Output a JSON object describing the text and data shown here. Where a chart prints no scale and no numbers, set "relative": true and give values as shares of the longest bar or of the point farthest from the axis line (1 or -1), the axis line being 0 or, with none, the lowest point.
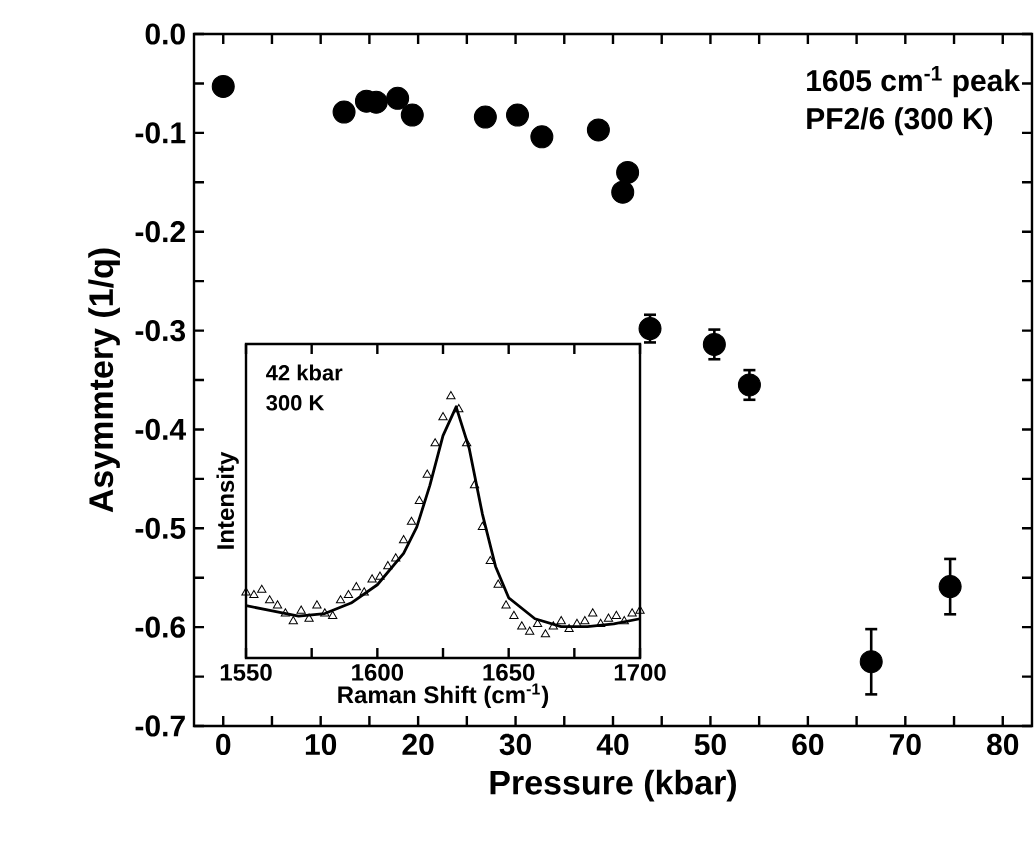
{
  "chart_data": [
    {
      "type": "scatter",
      "xlabel": "Pressure (kbar)",
      "ylabel": "Asymmtery (1/q)",
      "annotations": [
        "1605 cm$^{-1}$ peak",
        "PF2/6 (300 K)"
      ],
      "color": "#000000",
      "marker": "circle",
      "x": [
        0.0,
        12.4,
        14.7,
        15.7,
        17.9,
        19.4,
        26.9,
        30.2,
        32.7,
        38.5,
        41.5,
        41.0,
        43.8,
        50.4,
        54.0,
        66.5,
        74.6
      ],
      "values": [
        -0.053,
        -0.079,
        -0.068,
        -0.069,
        -0.065,
        -0.082,
        -0.084,
        -0.082,
        -0.104,
        -0.097,
        -0.14,
        -0.16,
        -0.298,
        -0.314,
        -0.355,
        -0.635,
        -0.559
      ],
      "errors": [
        null,
        null,
        null,
        null,
        null,
        null,
        null,
        null,
        null,
        null,
        null,
        null,
        0.014,
        0.015,
        0.015,
        0.033,
        0.028
      ],
      "xlim": [
        -3,
        83
      ],
      "ylim": [
        -0.7,
        0.0
      ],
      "xticks": [
        0,
        {
          "value": 5,
          "label": null
        },
        10,
        {
          "value": 15,
          "label": null
        },
        20,
        {
          "value": 25,
          "label": null
        },
        30,
        {
          "value": 35,
          "label": null
        },
        40,
        {
          "value": 45,
          "label": null
        },
        50,
        {
          "value": 55,
          "label": null
        },
        60,
        {
          "value": 65,
          "label": null
        },
        70,
        {
          "value": 75,
          "label": null
        },
        80
      ],
      "yticks": [
        {
          "value": 0.0,
          "label": "0.0"
        },
        {
          "value": -0.05,
          "label": null
        },
        -0.1,
        {
          "value": -0.15,
          "label": null
        },
        -0.2,
        {
          "value": -0.25,
          "label": null
        },
        -0.3,
        {
          "value": -0.35,
          "label": null
        },
        -0.4,
        {
          "value": -0.45,
          "label": null
        },
        -0.5,
        {
          "value": -0.55,
          "label": null
        },
        -0.6,
        {
          "value": -0.65,
          "label": null
        },
        -0.7
      ]
    },
    {
      "type": "scatter",
      "relative": true,
      "xlabel": "Raman Shift (cm$^{-1}$)",
      "ylabel": "Intensity",
      "annotations": [
        "42 kbar",
        "300 K"
      ],
      "tick_labels": "x",
      "xlim": [
        1550,
        1700
      ],
      "xticks": [
        1550,
        {
          "value": 1575,
          "label": null
        },
        1600,
        {
          "value": 1625,
          "label": null
        },
        1650,
        {
          "value": 1675,
          "label": null
        },
        1700
      ],
      "series": [
        {
          "type": "scatter",
          "marker": "triangle",
          "color": "#000000",
          "x": [
            1550,
            1553,
            1556,
            1559,
            1562,
            1565,
            1568,
            1571,
            1574,
            1577,
            1580,
            1583,
            1586,
            1589,
            1592,
            1595,
            1598,
            1601,
            1604,
            1607,
            1610,
            1613,
            1616,
            1619,
            1622,
            1625,
            1628,
            1631,
            1634,
            1637,
            1640,
            1643,
            1646,
            1649,
            1652,
            1655,
            1658,
            1661,
            1664,
            1667,
            1670,
            1673,
            1676,
            1679,
            1682,
            1685,
            1688,
            1691,
            1694,
            1697,
            1700
          ],
          "values": [
            0.25,
            0.24,
            0.26,
            0.22,
            0.2,
            0.17,
            0.14,
            0.18,
            0.15,
            0.2,
            0.17,
            0.16,
            0.22,
            0.24,
            0.27,
            0.25,
            0.3,
            0.31,
            0.35,
            0.38,
            0.45,
            0.52,
            0.6,
            0.7,
            0.82,
            0.92,
            1.0,
            0.95,
            0.82,
            0.66,
            0.5,
            0.37,
            0.28,
            0.2,
            0.16,
            0.12,
            0.1,
            0.13,
            0.09,
            0.12,
            0.14,
            0.11,
            0.13,
            0.14,
            0.17,
            0.13,
            0.15,
            0.16,
            0.14,
            0.17,
            0.18
          ]
        },
        {
          "type": "line",
          "marker": "none",
          "line_style": "solid",
          "color": "#000000",
          "x": [
            1550,
            1560,
            1570,
            1580,
            1590,
            1600,
            1610,
            1615,
            1620,
            1625,
            1630,
            1635,
            1640,
            1645,
            1650,
            1660,
            1670,
            1680,
            1690,
            1700
          ],
          "values": [
            0.2,
            0.18,
            0.16,
            0.17,
            0.21,
            0.28,
            0.4,
            0.5,
            0.66,
            0.85,
            0.96,
            0.8,
            0.55,
            0.35,
            0.23,
            0.15,
            0.12,
            0.12,
            0.13,
            0.15
          ]
        }
      ]
    }
  ]
}
